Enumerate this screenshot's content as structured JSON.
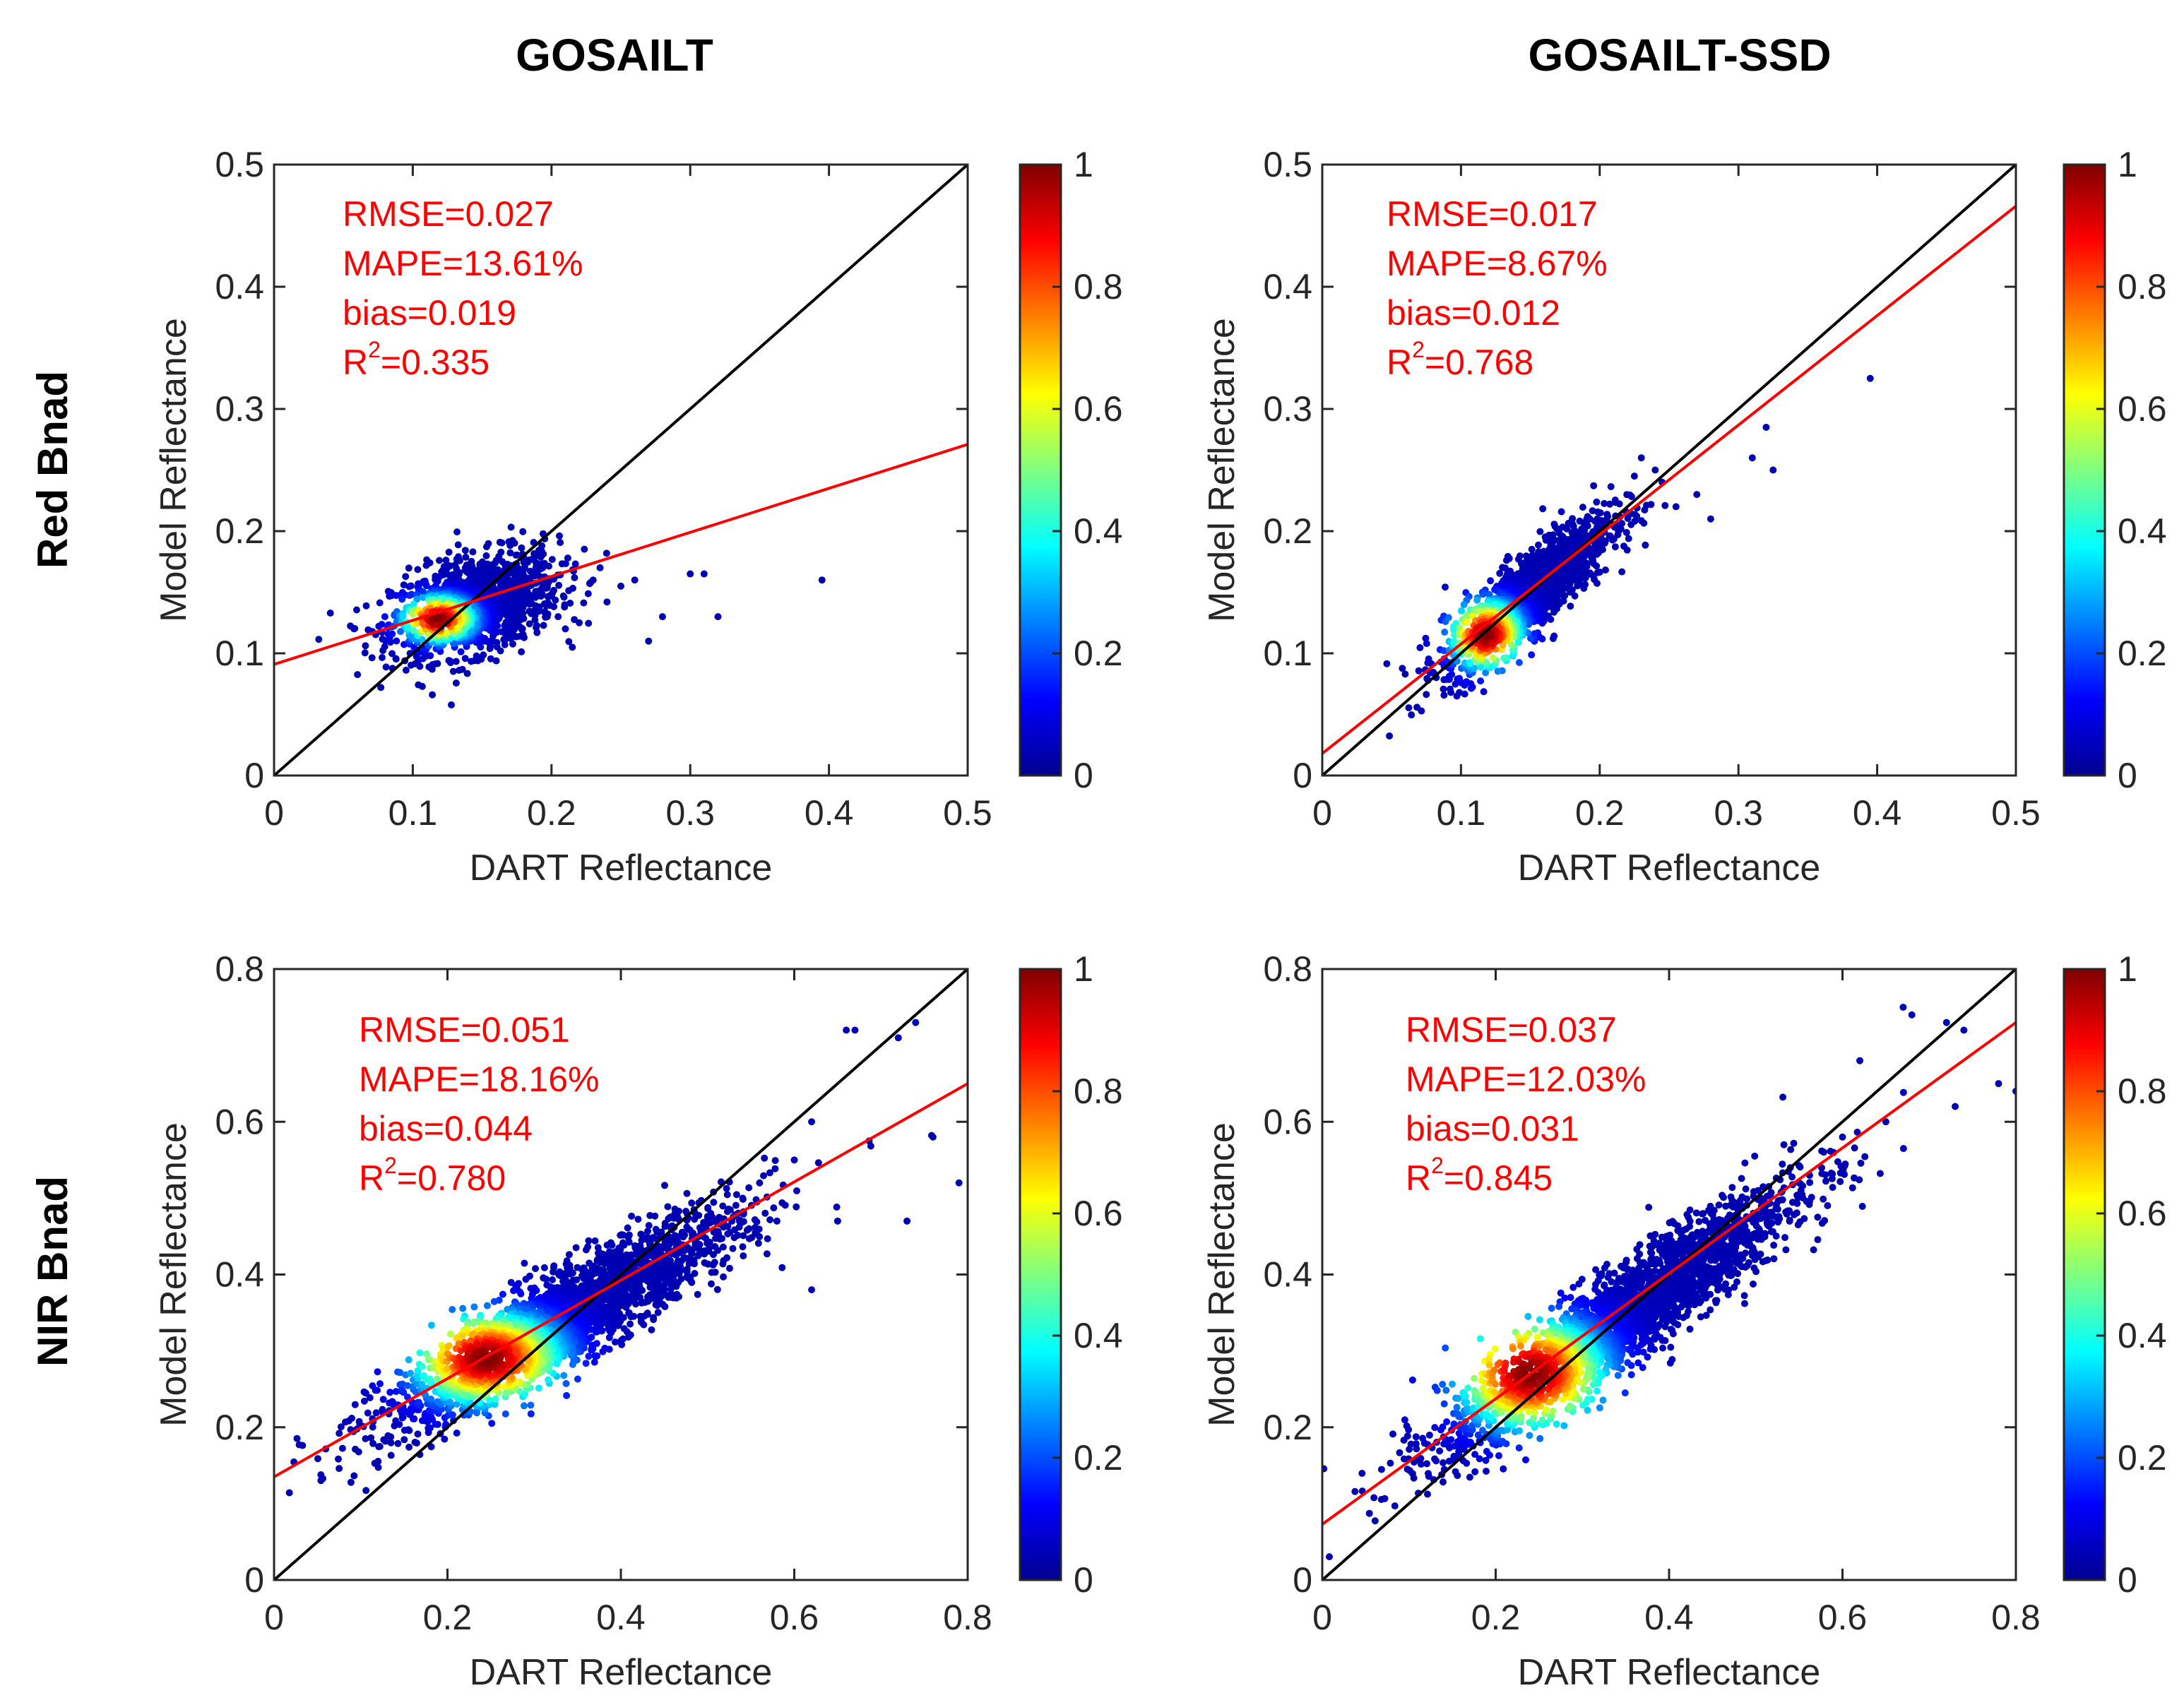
{
  "figure": {
    "col_titles": [
      "GOSAILT",
      "GOSAILT-SSD"
    ],
    "row_labels": [
      "Red Bnad",
      "NIR Bnad"
    ]
  },
  "chart_data": [
    {
      "type": "scatter",
      "panel": "red-gosailt",
      "xlabel": "DART Reflectance",
      "ylabel": "Model Reflectance",
      "xlim": [
        0,
        0.5
      ],
      "ylim": [
        0,
        0.5
      ],
      "xticks": [
        "0",
        "0.1",
        "0.2",
        "0.3",
        "0.4",
        "0.5"
      ],
      "yticks": [
        "0",
        "0.1",
        "0.2",
        "0.3",
        "0.4",
        "0.5"
      ],
      "stats": [
        "RMSE=0.027",
        "MAPE=13.61%",
        "bias=0.019"
      ],
      "r2": {
        "prefix": "R",
        "sup": "2",
        "value": "=0.335"
      },
      "one_to_one": [
        [
          0,
          0
        ],
        [
          0.5,
          0.5
        ]
      ],
      "fit_line": [
        [
          0,
          0.091
        ],
        [
          0.5,
          0.271
        ]
      ],
      "cluster": {
        "cx": 0.145,
        "cy": 0.14,
        "sx": 0.03,
        "sy": 0.021,
        "rho": 0.4,
        "n": 1300,
        "peak": [
          0.118,
          0.128
        ]
      },
      "outliers": [
        [
          0.23,
          0.16
        ],
        [
          0.25,
          0.155
        ],
        [
          0.26,
          0.16
        ],
        [
          0.24,
          0.142
        ],
        [
          0.28,
          0.13
        ],
        [
          0.3,
          0.165
        ],
        [
          0.31,
          0.165
        ],
        [
          0.32,
          0.13
        ],
        [
          0.395,
          0.16
        ],
        [
          0.22,
          0.125
        ],
        [
          0.215,
          0.105
        ],
        [
          0.27,
          0.11
        ],
        [
          0.235,
          0.17
        ],
        [
          0.21,
          0.12
        ]
      ],
      "colorbar": {
        "ticks": [
          "0",
          "0.2",
          "0.4",
          "0.6",
          "0.8",
          "1"
        ]
      }
    },
    {
      "type": "scatter",
      "panel": "red-gosailt-ssd",
      "xlabel": "DART Reflectance",
      "ylabel": "Model Reflectance",
      "xlim": [
        0,
        0.5
      ],
      "ylim": [
        0,
        0.5
      ],
      "xticks": [
        "0",
        "0.1",
        "0.2",
        "0.3",
        "0.4",
        "0.5"
      ],
      "yticks": [
        "0",
        "0.1",
        "0.2",
        "0.3",
        "0.4",
        "0.5"
      ],
      "stats": [
        "RMSE=0.017",
        "MAPE=8.67%",
        "bias=0.012"
      ],
      "r2": {
        "prefix": "R",
        "sup": "2",
        "value": "=0.768"
      },
      "one_to_one": [
        [
          0,
          0
        ],
        [
          0.5,
          0.5
        ]
      ],
      "fit_line": [
        [
          0,
          0.018
        ],
        [
          0.5,
          0.466
        ]
      ],
      "cluster": {
        "cx": 0.148,
        "cy": 0.148,
        "sx": 0.03,
        "sy": 0.032,
        "rho": 0.85,
        "n": 1500,
        "peak": [
          0.118,
          0.115
        ]
      },
      "outliers": [
        [
          0.395,
          0.325
        ],
        [
          0.31,
          0.26
        ],
        [
          0.325,
          0.25
        ],
        [
          0.32,
          0.285
        ],
        [
          0.28,
          0.21
        ],
        [
          0.27,
          0.23
        ],
        [
          0.255,
          0.22
        ],
        [
          0.245,
          0.24
        ],
        [
          0.23,
          0.26
        ],
        [
          0.24,
          0.25
        ],
        [
          0.225,
          0.245
        ]
      ],
      "colorbar": {
        "ticks": [
          "0",
          "0.2",
          "0.4",
          "0.6",
          "0.8",
          "1"
        ]
      }
    },
    {
      "type": "scatter",
      "panel": "nir-gosailt",
      "xlabel": "DART Reflectance",
      "ylabel": "Model Reflectance",
      "xlim": [
        0,
        0.8
      ],
      "ylim": [
        0,
        0.8
      ],
      "xticks": [
        "0",
        "0.2",
        "0.4",
        "0.6",
        "0.8"
      ],
      "yticks": [
        "0",
        "0.2",
        "0.4",
        "0.6",
        "0.8"
      ],
      "stats": [
        "RMSE=0.051",
        "MAPE=18.16%",
        "bias=0.044"
      ],
      "r2": {
        "prefix": "R",
        "sup": "2",
        "value": "=0.780"
      },
      "one_to_one": [
        [
          0,
          0
        ],
        [
          0.8,
          0.8
        ]
      ],
      "fit_line": [
        [
          0,
          0.135
        ],
        [
          0.8,
          0.65
        ]
      ],
      "cluster": {
        "cx": 0.33,
        "cy": 0.34,
        "sx": 0.1,
        "sy": 0.07,
        "rho": 0.9,
        "n": 2600,
        "peak": [
          0.245,
          0.29
        ]
      },
      "outliers": [
        [
          0.67,
          0.72
        ],
        [
          0.66,
          0.72
        ],
        [
          0.74,
          0.73
        ],
        [
          0.72,
          0.71
        ],
        [
          0.76,
          0.58
        ],
        [
          0.73,
          0.47
        ],
        [
          0.79,
          0.52
        ],
        [
          0.62,
          0.6
        ],
        [
          0.6,
          0.55
        ],
        [
          0.65,
          0.47
        ],
        [
          0.62,
          0.38
        ],
        [
          0.56,
          0.52
        ],
        [
          0.58,
          0.47
        ]
      ],
      "colorbar": {
        "ticks": [
          "0",
          "0.2",
          "0.4",
          "0.6",
          "0.8",
          "1"
        ]
      }
    },
    {
      "type": "scatter",
      "panel": "nir-gosailt-ssd",
      "xlabel": "DART Reflectance",
      "ylabel": "Model Reflectance",
      "xlim": [
        0,
        0.8
      ],
      "ylim": [
        0,
        0.8
      ],
      "xticks": [
        "0",
        "0.2",
        "0.4",
        "0.6",
        "0.8"
      ],
      "yticks": [
        "0",
        "0.2",
        "0.4",
        "0.6",
        "0.8"
      ],
      "stats": [
        "RMSE=0.037",
        "MAPE=12.03%",
        "bias=0.031"
      ],
      "r2": {
        "prefix": "R",
        "sup": "2",
        "value": "=0.845"
      },
      "one_to_one": [
        [
          0,
          0
        ],
        [
          0.8,
          0.8
        ]
      ],
      "fit_line": [
        [
          0,
          0.073
        ],
        [
          0.8,
          0.73
        ]
      ],
      "cluster": {
        "cx": 0.34,
        "cy": 0.34,
        "sx": 0.1,
        "sy": 0.085,
        "rho": 0.92,
        "n": 2600,
        "peak": [
          0.24,
          0.27
        ]
      },
      "outliers": [
        [
          0.67,
          0.75
        ],
        [
          0.68,
          0.74
        ],
        [
          0.72,
          0.73
        ],
        [
          0.74,
          0.72
        ],
        [
          0.78,
          0.65
        ],
        [
          0.8,
          0.64
        ],
        [
          0.73,
          0.62
        ],
        [
          0.65,
          0.6
        ],
        [
          0.6,
          0.58
        ],
        [
          0.55,
          0.52
        ],
        [
          0.62,
          0.68
        ]
      ],
      "colorbar": {
        "ticks": [
          "0",
          "0.2",
          "0.4",
          "0.6",
          "0.8",
          "1"
        ]
      }
    }
  ]
}
